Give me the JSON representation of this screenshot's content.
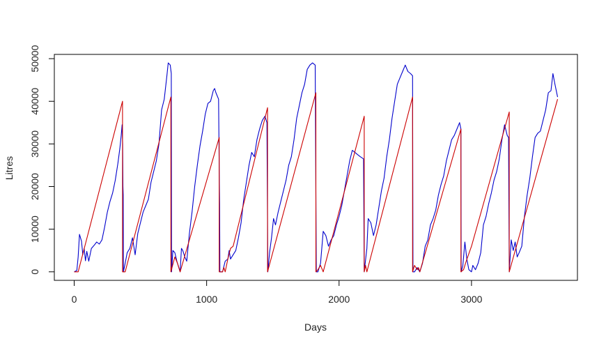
{
  "chart_data": {
    "type": "line",
    "xlabel": "Days",
    "ylabel": "Litres",
    "xlim": [
      -150,
      3800
    ],
    "ylim": [
      -2000,
      51000
    ],
    "x_ticks": [
      0,
      1000,
      2000,
      3000
    ],
    "x_tick_labels": [
      "0",
      "1000",
      "2000",
      "3000"
    ],
    "y_ticks": [
      0,
      10000,
      20000,
      30000,
      40000,
      50000
    ],
    "y_tick_labels": [
      "0",
      "10000",
      "20000",
      "30000",
      "40000",
      "50000"
    ],
    "grid": false,
    "series": [
      {
        "color": "#0000cc",
        "points": [
          [
            0,
            0
          ],
          [
            20,
            300
          ],
          [
            30,
            3500
          ],
          [
            40,
            8800
          ],
          [
            55,
            7200
          ],
          [
            65,
            4000
          ],
          [
            75,
            5500
          ],
          [
            85,
            2600
          ],
          [
            95,
            4800
          ],
          [
            110,
            2500
          ],
          [
            130,
            5500
          ],
          [
            150,
            6200
          ],
          [
            170,
            7000
          ],
          [
            190,
            6500
          ],
          [
            210,
            7500
          ],
          [
            230,
            10500
          ],
          [
            250,
            14000
          ],
          [
            270,
            16500
          ],
          [
            290,
            18500
          ],
          [
            310,
            21500
          ],
          [
            330,
            25500
          ],
          [
            345,
            29000
          ],
          [
            355,
            32000
          ],
          [
            362,
            34500
          ],
          [
            366,
            30000
          ],
          [
            368,
            20000
          ],
          [
            370,
            18000
          ],
          [
            372,
            0
          ],
          [
            385,
            2000
          ],
          [
            400,
            4500
          ],
          [
            420,
            5500
          ],
          [
            440,
            8000
          ],
          [
            460,
            4000
          ],
          [
            480,
            9000
          ],
          [
            500,
            11500
          ],
          [
            520,
            14000
          ],
          [
            540,
            15500
          ],
          [
            560,
            17000
          ],
          [
            580,
            21000
          ],
          [
            600,
            23500
          ],
          [
            620,
            26000
          ],
          [
            640,
            30000
          ],
          [
            660,
            38000
          ],
          [
            680,
            40500
          ],
          [
            700,
            46000
          ],
          [
            710,
            49000
          ],
          [
            725,
            48500
          ],
          [
            733,
            46500
          ],
          [
            735,
            0
          ],
          [
            745,
            5000
          ],
          [
            760,
            4500
          ],
          [
            775,
            2500
          ],
          [
            790,
            1000
          ],
          [
            800,
            0
          ],
          [
            810,
            5500
          ],
          [
            820,
            5000
          ],
          [
            835,
            3500
          ],
          [
            850,
            2500
          ],
          [
            870,
            9000
          ],
          [
            890,
            14000
          ],
          [
            910,
            20000
          ],
          [
            930,
            25000
          ],
          [
            950,
            29500
          ],
          [
            970,
            33000
          ],
          [
            990,
            37000
          ],
          [
            1010,
            39500
          ],
          [
            1030,
            40000
          ],
          [
            1050,
            42500
          ],
          [
            1060,
            43000
          ],
          [
            1070,
            42000
          ],
          [
            1090,
            40500
          ],
          [
            1095,
            24000
          ],
          [
            1098,
            16000
          ],
          [
            1100,
            0
          ],
          [
            1120,
            0
          ],
          [
            1140,
            2500
          ],
          [
            1160,
            3000
          ],
          [
            1170,
            5000
          ],
          [
            1180,
            3000
          ],
          [
            1200,
            4000
          ],
          [
            1220,
            5000
          ],
          [
            1240,
            8000
          ],
          [
            1260,
            11500
          ],
          [
            1280,
            17000
          ],
          [
            1300,
            21000
          ],
          [
            1320,
            25000
          ],
          [
            1340,
            28000
          ],
          [
            1360,
            27000
          ],
          [
            1380,
            31000
          ],
          [
            1400,
            33500
          ],
          [
            1420,
            35500
          ],
          [
            1440,
            36500
          ],
          [
            1455,
            35000
          ],
          [
            1462,
            0
          ],
          [
            1475,
            4500
          ],
          [
            1490,
            8000
          ],
          [
            1505,
            12500
          ],
          [
            1520,
            11000
          ],
          [
            1540,
            14000
          ],
          [
            1560,
            16500
          ],
          [
            1580,
            19000
          ],
          [
            1600,
            21500
          ],
          [
            1620,
            25000
          ],
          [
            1640,
            27000
          ],
          [
            1660,
            31000
          ],
          [
            1680,
            36000
          ],
          [
            1700,
            39000
          ],
          [
            1720,
            42000
          ],
          [
            1740,
            44000
          ],
          [
            1760,
            47500
          ],
          [
            1780,
            48500
          ],
          [
            1800,
            49000
          ],
          [
            1820,
            48500
          ],
          [
            1828,
            0
          ],
          [
            1840,
            0
          ],
          [
            1860,
            2000
          ],
          [
            1880,
            9500
          ],
          [
            1900,
            8500
          ],
          [
            1920,
            6000
          ],
          [
            1940,
            7500
          ],
          [
            1960,
            8500
          ],
          [
            1980,
            11000
          ],
          [
            2000,
            13000
          ],
          [
            2020,
            15500
          ],
          [
            2040,
            19000
          ],
          [
            2060,
            22500
          ],
          [
            2080,
            26000
          ],
          [
            2100,
            28500
          ],
          [
            2120,
            28000
          ],
          [
            2140,
            27500
          ],
          [
            2160,
            27000
          ],
          [
            2185,
            26500
          ],
          [
            2190,
            0
          ],
          [
            2210,
            5500
          ],
          [
            2220,
            12500
          ],
          [
            2240,
            11500
          ],
          [
            2260,
            8500
          ],
          [
            2280,
            11000
          ],
          [
            2300,
            15000
          ],
          [
            2320,
            19000
          ],
          [
            2340,
            22000
          ],
          [
            2360,
            27000
          ],
          [
            2380,
            31000
          ],
          [
            2400,
            36000
          ],
          [
            2420,
            40000
          ],
          [
            2440,
            44000
          ],
          [
            2460,
            45500
          ],
          [
            2480,
            47000
          ],
          [
            2500,
            48500
          ],
          [
            2520,
            47000
          ],
          [
            2540,
            46500
          ],
          [
            2555,
            46000
          ],
          [
            2558,
            0
          ],
          [
            2570,
            0
          ],
          [
            2590,
            1000
          ],
          [
            2610,
            0
          ],
          [
            2630,
            2000
          ],
          [
            2650,
            6000
          ],
          [
            2670,
            7500
          ],
          [
            2690,
            11000
          ],
          [
            2710,
            12500
          ],
          [
            2730,
            14500
          ],
          [
            2750,
            18000
          ],
          [
            2770,
            20500
          ],
          [
            2790,
            22500
          ],
          [
            2810,
            26000
          ],
          [
            2830,
            28500
          ],
          [
            2850,
            31000
          ],
          [
            2870,
            32000
          ],
          [
            2890,
            33500
          ],
          [
            2910,
            35000
          ],
          [
            2920,
            33500
          ],
          [
            2922,
            0
          ],
          [
            2935,
            1500
          ],
          [
            2950,
            7000
          ],
          [
            2965,
            3000
          ],
          [
            2980,
            500
          ],
          [
            3000,
            0
          ],
          [
            3010,
            1500
          ],
          [
            3030,
            500
          ],
          [
            3050,
            2000
          ],
          [
            3070,
            4500
          ],
          [
            3090,
            11000
          ],
          [
            3110,
            13000
          ],
          [
            3130,
            16000
          ],
          [
            3150,
            18500
          ],
          [
            3170,
            21500
          ],
          [
            3190,
            23500
          ],
          [
            3210,
            26500
          ],
          [
            3230,
            31000
          ],
          [
            3250,
            34500
          ],
          [
            3270,
            32000
          ],
          [
            3280,
            31500
          ],
          [
            3285,
            0
          ],
          [
            3300,
            7500
          ],
          [
            3315,
            5000
          ],
          [
            3330,
            7000
          ],
          [
            3345,
            3500
          ],
          [
            3360,
            4500
          ],
          [
            3380,
            6000
          ],
          [
            3400,
            13000
          ],
          [
            3420,
            18000
          ],
          [
            3440,
            22000
          ],
          [
            3460,
            27000
          ],
          [
            3480,
            31500
          ],
          [
            3500,
            32500
          ],
          [
            3520,
            33000
          ],
          [
            3540,
            35500
          ],
          [
            3560,
            38000
          ],
          [
            3580,
            42000
          ],
          [
            3600,
            42500
          ],
          [
            3615,
            46500
          ],
          [
            3630,
            44000
          ],
          [
            3650,
            41000
          ]
        ]
      },
      {
        "color": "#cc0000",
        "points": [
          [
            0,
            0
          ],
          [
            30,
            0
          ],
          [
            365,
            40000
          ],
          [
            365,
            0
          ],
          [
            385,
            0
          ],
          [
            730,
            41000
          ],
          [
            730,
            0
          ],
          [
            760,
            3500
          ],
          [
            780,
            2000
          ],
          [
            800,
            0
          ],
          [
            1095,
            31500
          ],
          [
            1095,
            0
          ],
          [
            1120,
            0
          ],
          [
            1130,
            1000
          ],
          [
            1140,
            0
          ],
          [
            1160,
            3000
          ],
          [
            1180,
            5500
          ],
          [
            1200,
            6000
          ],
          [
            1460,
            38500
          ],
          [
            1460,
            0
          ],
          [
            1825,
            42000
          ],
          [
            1825,
            0
          ],
          [
            1840,
            500
          ],
          [
            1860,
            1500
          ],
          [
            1880,
            0
          ],
          [
            2190,
            36500
          ],
          [
            2190,
            0
          ],
          [
            2200,
            1500
          ],
          [
            2210,
            0
          ],
          [
            2555,
            41000
          ],
          [
            2555,
            0
          ],
          [
            2570,
            1500
          ],
          [
            2590,
            500
          ],
          [
            2600,
            1000
          ],
          [
            2610,
            0
          ],
          [
            2920,
            33500
          ],
          [
            2920,
            0
          ],
          [
            2940,
            500
          ],
          [
            2960,
            2500
          ],
          [
            3000,
            6000
          ],
          [
            3285,
            37500
          ],
          [
            3285,
            0
          ],
          [
            3650,
            40500
          ]
        ]
      }
    ]
  }
}
